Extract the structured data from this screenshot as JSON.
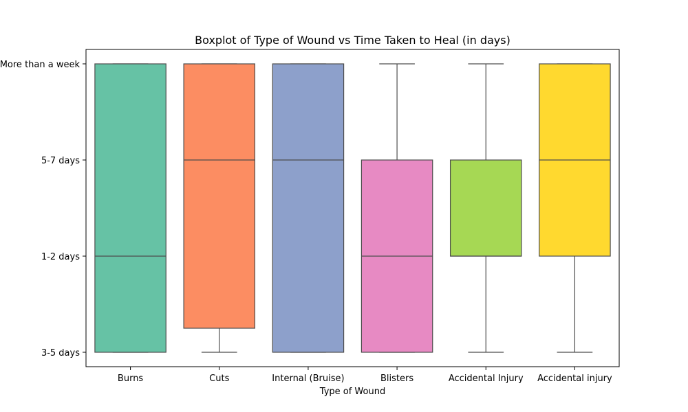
{
  "chart_data": {
    "type": "box",
    "title": "Boxplot of Type of Wound vs Time Taken to Heal (in days)",
    "xlabel": "Type of Wound",
    "ylabel": "",
    "y_categories": [
      "3-5 days",
      "1-2 days",
      "5-7 days",
      "More than a week"
    ],
    "categories": [
      "Burns",
      "Cuts",
      "Internal (Bruise)",
      "Blisters",
      "Accidental Injury",
      "Accidental injury"
    ],
    "boxes": [
      {
        "name": "Burns",
        "whisker_low": 0,
        "q1": 0,
        "median": 1,
        "q3": 3,
        "whisker_high": 3,
        "color": "#66c2a5"
      },
      {
        "name": "Cuts",
        "whisker_low": 0,
        "q1": 0.25,
        "median": 2,
        "q3": 3,
        "whisker_high": 3,
        "color": "#fc8d62"
      },
      {
        "name": "Internal (Bruise)",
        "whisker_low": 0,
        "q1": 0,
        "median": 2,
        "q3": 3,
        "whisker_high": 3,
        "color": "#8da0cb"
      },
      {
        "name": "Blisters",
        "whisker_low": 0,
        "q1": 0,
        "median": 1,
        "q3": 2,
        "whisker_high": 3,
        "color": "#e78ac3"
      },
      {
        "name": "Accidental Injury",
        "whisker_low": 0,
        "q1": 1,
        "median": 1,
        "q3": 2,
        "whisker_high": 3,
        "color": "#a6d854"
      },
      {
        "name": "Accidental injury",
        "whisker_low": 0,
        "q1": 1,
        "median": 2,
        "q3": 3,
        "whisker_high": 3,
        "color": "#ffd92f"
      }
    ],
    "ylim": [
      -0.15,
      3.15
    ],
    "grid": false,
    "legend": "none"
  }
}
